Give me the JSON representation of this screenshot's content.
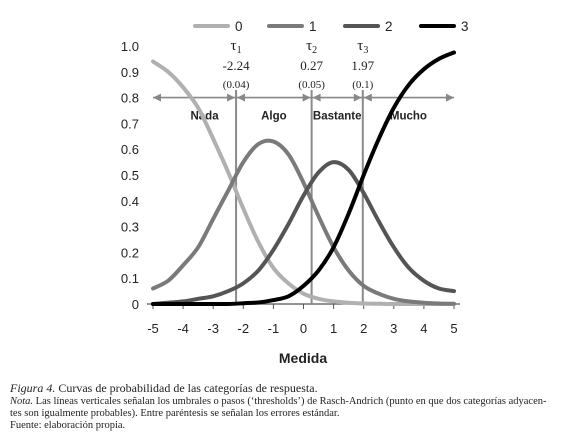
{
  "chart_data": {
    "type": "line",
    "xlabel": "Medida",
    "ylabel": "",
    "xlim": [
      -5.2,
      5.2
    ],
    "ylim": [
      0,
      1.0
    ],
    "x_ticks": [
      -5,
      -4,
      -3,
      -2,
      -1,
      0,
      1,
      2,
      3,
      4,
      5
    ],
    "x_tick_labels": [
      "-5",
      "-4",
      "-3",
      "-2",
      "-1",
      "0",
      "1",
      "2",
      "3",
      "4",
      "5"
    ],
    "y_ticks": [
      0,
      0.1,
      0.2,
      0.3,
      0.4,
      0.5,
      0.6,
      0.7,
      0.8,
      0.9,
      1.0
    ],
    "y_tick_labels": [
      "0",
      "0.1",
      "0.2",
      "0.3",
      "0.4",
      "0.5",
      "0.6",
      "0.7",
      "0.8",
      "0.9",
      "1.0"
    ],
    "grid": false,
    "legend": "top",
    "x": [
      -5,
      -4.5,
      -4,
      -3.5,
      -3,
      -2.5,
      -2,
      -1.5,
      -1,
      -0.5,
      0,
      0.5,
      1,
      1.5,
      2,
      2.5,
      3,
      3.5,
      4,
      4.5,
      5
    ],
    "series": [
      {
        "name": "0",
        "color": "#b0b0b0",
        "values": [
          0.94,
          0.9,
          0.84,
          0.76,
          0.64,
          0.51,
          0.37,
          0.24,
          0.14,
          0.08,
          0.04,
          0.02,
          0.01,
          0.005,
          0.002,
          0.001,
          0.0,
          0.0,
          0.0,
          0.0,
          0.0
        ]
      },
      {
        "name": "1",
        "color": "#7a7a7a",
        "values": [
          0.06,
          0.09,
          0.15,
          0.22,
          0.33,
          0.44,
          0.55,
          0.62,
          0.63,
          0.58,
          0.47,
          0.34,
          0.22,
          0.13,
          0.07,
          0.04,
          0.02,
          0.01,
          0.005,
          0.002,
          0.001
        ]
      },
      {
        "name": "2",
        "color": "#555555",
        "values": [
          0.0,
          0.005,
          0.01,
          0.02,
          0.03,
          0.05,
          0.08,
          0.13,
          0.21,
          0.31,
          0.42,
          0.51,
          0.55,
          0.52,
          0.43,
          0.32,
          0.22,
          0.14,
          0.09,
          0.06,
          0.05
        ]
      },
      {
        "name": "3",
        "color": "#000000",
        "values": [
          0.0,
          0.0,
          0.0,
          0.0,
          0.0,
          0.0,
          0.003,
          0.006,
          0.015,
          0.03,
          0.07,
          0.13,
          0.22,
          0.35,
          0.5,
          0.64,
          0.76,
          0.85,
          0.91,
          0.95,
          0.975
        ]
      }
    ],
    "thresholds": [
      {
        "symbol": "τ",
        "sub": "1",
        "value": -2.24,
        "value_label": "-2.24",
        "se_label": "(0.04)"
      },
      {
        "symbol": "τ",
        "sub": "2",
        "value": 0.27,
        "value_label": "0.27",
        "se_label": "(0.05)"
      },
      {
        "symbol": "τ",
        "sub": "3",
        "value": 1.97,
        "value_label": "1.97",
        "se_label": "(0.1)"
      }
    ],
    "category_band": {
      "y": 0.8,
      "labels": [
        "Nada",
        "Algo",
        "Bastante",
        "Mucho"
      ],
      "ends": [
        -5,
        5
      ]
    }
  },
  "caption": {
    "figure_label": "Figura 4.",
    "figure_text": " Curvas de probabilidad de las categorías de respuesta.",
    "note_label": "Nota.",
    "note_line1": " Las líneas verticales señalan los umbrales o pasos (‘thresholds’) de Rasch-Andrich (punto en que dos categorías adyacen-",
    "note_line2": "tes son igualmente probables). Entre paréntesis se señalan los errores estándar.",
    "source": "Fuente: elaboración propia."
  }
}
